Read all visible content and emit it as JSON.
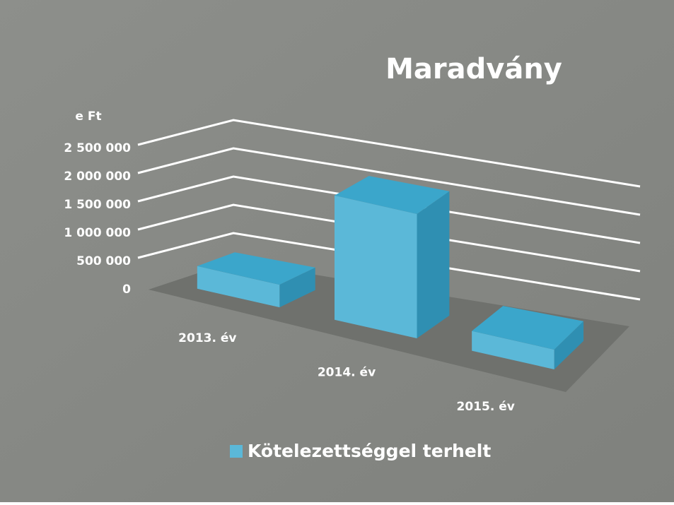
{
  "chart_data": {
    "type": "bar3d",
    "title": "Maradvány",
    "y_label": "e Ft",
    "categories": [
      "2013. év",
      "2014. év",
      "2015. év"
    ],
    "series": [
      {
        "name": "Kötelezettséggel terhelt",
        "color": "#5bb8d8",
        "values": [
          400000,
          2200000,
          350000
        ]
      }
    ],
    "ylim": [
      0,
      2500000
    ],
    "yticks": [
      0,
      {
        "value": 500000,
        "label": "500 000"
      },
      {
        "value": 1000000,
        "label": "1 000 000"
      },
      {
        "value": 1500000,
        "label": "1 500 000"
      },
      {
        "value": 2000000,
        "label": "2 000 000"
      },
      {
        "value": 2500000,
        "label": "2 500 000"
      }
    ],
    "grid": true,
    "legend": "bottom"
  }
}
